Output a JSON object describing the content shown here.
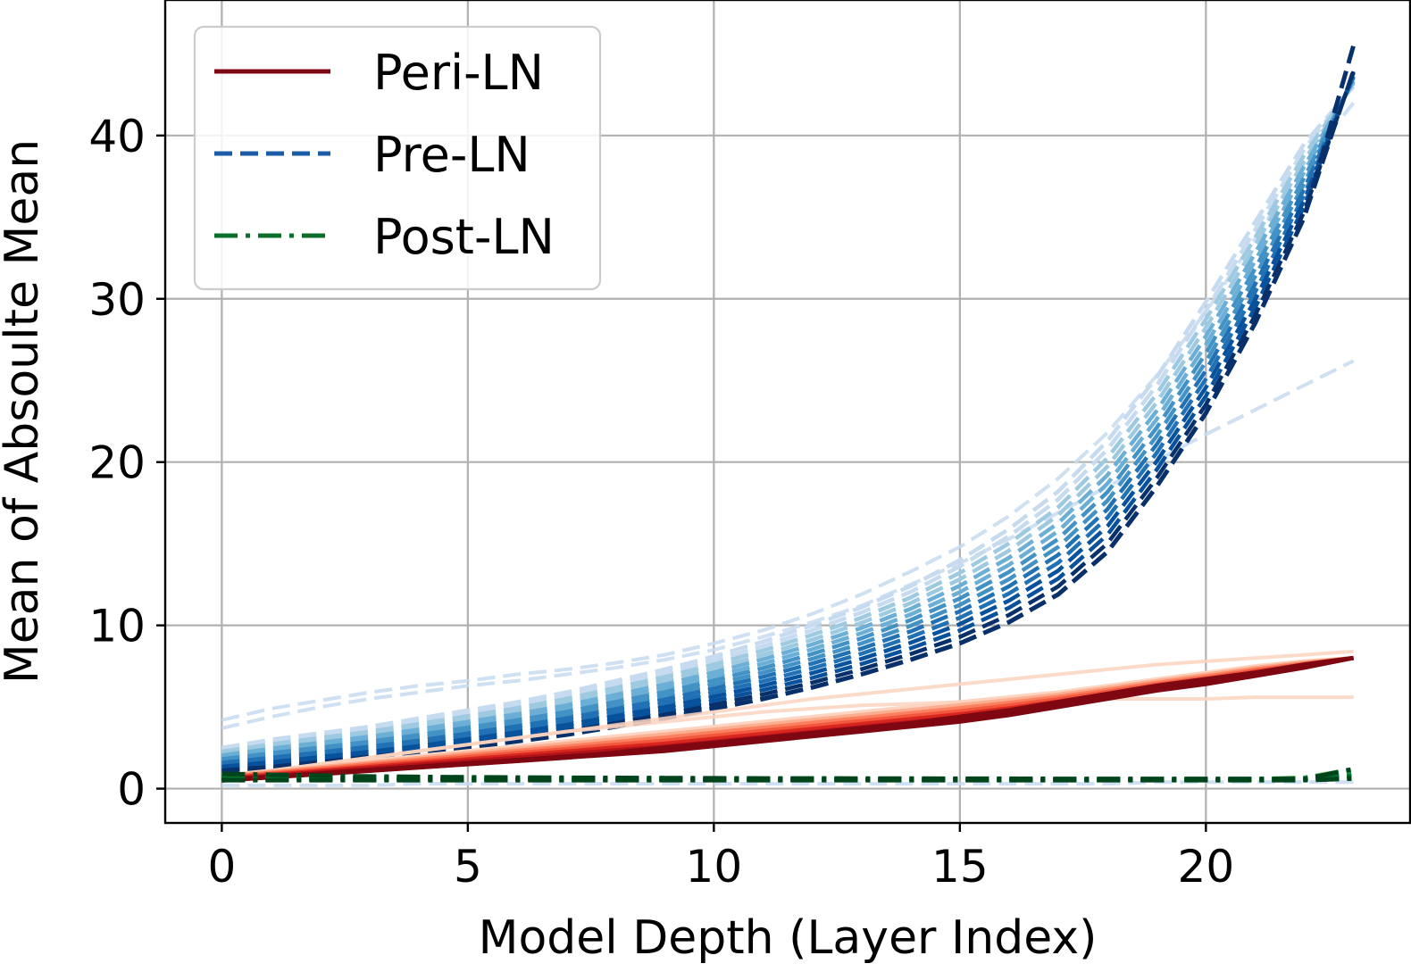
{
  "chart_data": {
    "type": "line",
    "xlabel": "Model Depth (Layer Index)",
    "ylabel": "Mean of Absoulte Mean",
    "xlim": [
      -1.15,
      24.15
    ],
    "ylim": [
      -2.1,
      48.3
    ],
    "xticks": [
      0,
      5,
      10,
      15,
      20
    ],
    "yticks": [
      0,
      10,
      20,
      30,
      40
    ],
    "grid": true,
    "legend_position": "upper-left",
    "x": [
      0,
      1,
      2,
      3,
      4,
      5,
      6,
      7,
      8,
      9,
      10,
      11,
      12,
      13,
      14,
      15,
      16,
      17,
      18,
      19,
      20,
      21,
      22,
      23
    ],
    "series": [
      {
        "name": "Peri-LN",
        "line_style": "solid",
        "color": "#7f0711",
        "representative_values": [
          0.5,
          0.7,
          0.9,
          1.1,
          1.3,
          1.5,
          1.7,
          1.9,
          2.2,
          2.5,
          2.8,
          3.1,
          3.4,
          3.7,
          4.0,
          4.4,
          4.8,
          5.3,
          5.8,
          6.3,
          6.7,
          7.1,
          7.6,
          8.0
        ],
        "runs_low": [
          0.5,
          0.7,
          0.9,
          1.1,
          1.3,
          1.5,
          1.7,
          1.9,
          2.1,
          2.3,
          2.6,
          2.9,
          3.2,
          3.5,
          3.8,
          4.1,
          4.5,
          5.0,
          5.5,
          6.0,
          6.4,
          6.9,
          7.4,
          8.0
        ],
        "runs_high": [
          0.8,
          1.1,
          1.4,
          1.7,
          2.0,
          2.3,
          2.6,
          2.9,
          3.2,
          3.5,
          3.8,
          4.1,
          4.4,
          4.7,
          5.0,
          5.3,
          5.6,
          5.9,
          6.3,
          6.7,
          7.1,
          7.5,
          7.8,
          8.0
        ],
        "faint_runs": [
          [
            0.7,
            1.1,
            1.5,
            1.9,
            2.3,
            2.7,
            3.1,
            3.5,
            3.9,
            4.3,
            4.7,
            5.1,
            5.5,
            5.8,
            6.1,
            6.4,
            6.7,
            7.0,
            7.3,
            7.6,
            7.8,
            8.0,
            8.2,
            8.4
          ],
          [
            0.7,
            1.1,
            1.5,
            1.9,
            2.3,
            2.7,
            3.1,
            3.5,
            3.8,
            4.1,
            4.4,
            4.7,
            4.9,
            5.1,
            5.2,
            5.3,
            5.4,
            5.4,
            5.5,
            5.5,
            5.5,
            5.6,
            5.6,
            5.6
          ]
        ]
      },
      {
        "name": "Pre-LN",
        "line_style": "dashed",
        "color": "#08306b",
        "representative_values": [
          1.0,
          1.2,
          1.5,
          1.8,
          2.1,
          2.5,
          2.9,
          3.3,
          3.8,
          4.3,
          4.9,
          5.5,
          6.2,
          7.0,
          7.9,
          8.9,
          10.2,
          11.9,
          14.5,
          18.5,
          23.0,
          28.5,
          35.0,
          45.5
        ],
        "runs_low": [
          1.0,
          1.2,
          1.5,
          1.8,
          2.1,
          2.5,
          2.9,
          3.3,
          3.8,
          4.3,
          4.9,
          5.5,
          6.2,
          7.0,
          7.9,
          8.9,
          10.2,
          11.9,
          14.5,
          18.5,
          23.0,
          28.5,
          35.0,
          44.0
        ],
        "runs_high": [
          2.5,
          3.0,
          3.4,
          3.8,
          4.3,
          4.8,
          5.3,
          5.9,
          6.6,
          7.3,
          8.1,
          9.0,
          10.0,
          11.1,
          12.4,
          14.0,
          15.9,
          18.2,
          21.3,
          25.2,
          29.8,
          34.7,
          39.5,
          43.0
        ],
        "faint_runs": [
          [
            4.2,
            4.9,
            5.4,
            5.9,
            6.3,
            6.6,
            7.0,
            7.3,
            7.7,
            8.2,
            8.9,
            9.7,
            10.7,
            11.9,
            13.3,
            14.8,
            16.7,
            19.0,
            21.8,
            25.3,
            29.2,
            33.7,
            38.3,
            42.0
          ],
          [
            3.7,
            4.4,
            5.0,
            5.5,
            5.9,
            6.3,
            6.6,
            7.0,
            7.4,
            7.9,
            8.5,
            9.3,
            10.2,
            11.2,
            12.5,
            13.8,
            15.3,
            16.9,
            18.5,
            20.1,
            21.7,
            23.2,
            24.7,
            26.2
          ],
          [
            0.2,
            0.2,
            0.2,
            0.2,
            0.3,
            0.3,
            0.3,
            0.3,
            0.3,
            0.3,
            0.3,
            0.3,
            0.3,
            0.3,
            0.3,
            0.3,
            0.3,
            0.3,
            0.3,
            0.4,
            0.4,
            0.4,
            0.4,
            0.4
          ]
        ]
      },
      {
        "name": "Post-LN",
        "line_style": "dashdot",
        "color": "#00441b",
        "representative_values": [
          0.9,
          0.85,
          0.8,
          0.75,
          0.72,
          0.7,
          0.68,
          0.67,
          0.66,
          0.65,
          0.64,
          0.63,
          0.63,
          0.62,
          0.62,
          0.61,
          0.61,
          0.6,
          0.6,
          0.6,
          0.6,
          0.6,
          0.6,
          1.2
        ],
        "runs_low": [
          0.5,
          0.5,
          0.5,
          0.5,
          0.5,
          0.5,
          0.5,
          0.5,
          0.5,
          0.5,
          0.5,
          0.5,
          0.5,
          0.5,
          0.5,
          0.5,
          0.5,
          0.5,
          0.5,
          0.5,
          0.5,
          0.5,
          0.5,
          0.6
        ],
        "runs_high": [
          0.9,
          0.85,
          0.8,
          0.75,
          0.72,
          0.7,
          0.68,
          0.67,
          0.66,
          0.65,
          0.64,
          0.63,
          0.63,
          0.62,
          0.62,
          0.61,
          0.61,
          0.6,
          0.6,
          0.6,
          0.6,
          0.6,
          0.7,
          1.2
        ],
        "faint_runs": []
      }
    ]
  },
  "palette": {
    "peri": [
      "#fcd4c0",
      "#fcae91",
      "#fb8060",
      "#f3573e",
      "#d8271f",
      "#b3121b",
      "#7f0711"
    ],
    "pre": [
      "#c6dbef",
      "#9ecae1",
      "#6baed6",
      "#4292c6",
      "#2171b5",
      "#08519c",
      "#08306b"
    ],
    "post": [
      "#a1d99b",
      "#41ab5d",
      "#238b45",
      "#006d2c",
      "#00441b"
    ],
    "legend_peri": "#7f0711",
    "legend_pre": "#1c5ba6",
    "legend_post": "#0b6e2c",
    "grid": "#b0b0b0"
  }
}
